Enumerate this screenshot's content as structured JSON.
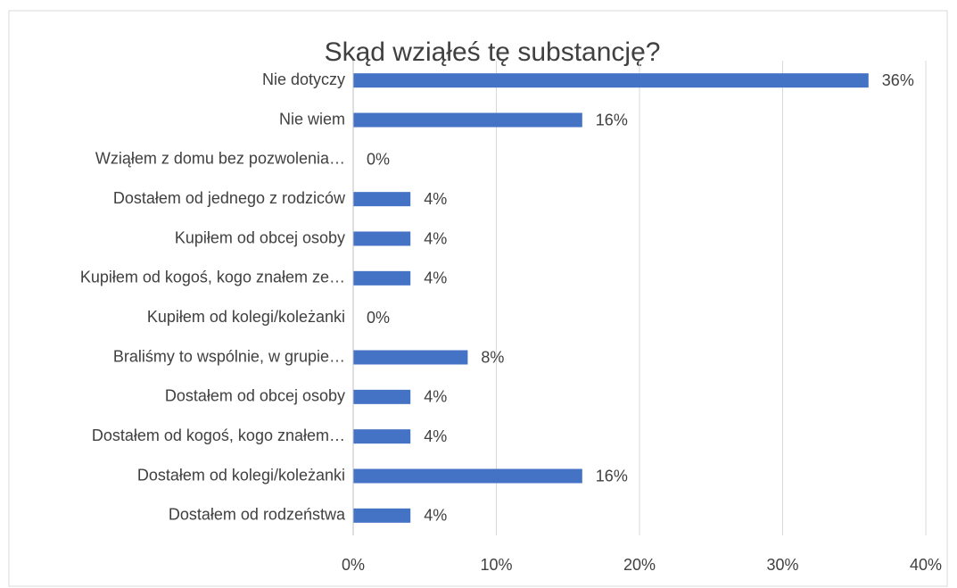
{
  "chart_data": {
    "type": "bar",
    "orientation": "horizontal",
    "title": "Skąd wziąłeś tę substancję?",
    "categories": [
      "Nie dotyczy",
      "Nie wiem",
      "Wziąłem z domu bez pozwolenia…",
      "Dostałem od jednego z rodziców",
      "Kupiłem od obcej osoby",
      "Kupiłem od kogoś, kogo znałem ze…",
      "Kupiłem od kolegi/koleżanki",
      "Braliśmy to wspólnie, w grupie…",
      "Dostałem od obcej osoby",
      "Dostałem od kogoś, kogo znałem…",
      "Dostałem od kolegi/koleżanki",
      "Dostałem od rodzeństwa"
    ],
    "values": [
      36,
      16,
      0,
      4,
      4,
      4,
      0,
      8,
      4,
      4,
      16,
      4
    ],
    "value_labels": [
      "36%",
      "16%",
      "0%",
      "4%",
      "4%",
      "4%",
      "0%",
      "8%",
      "4%",
      "4%",
      "16%",
      "4%"
    ],
    "color": "#4472c4",
    "xlim": [
      0,
      40
    ],
    "xticks": [
      {
        "value": 0,
        "label": "0%"
      },
      {
        "value": 10,
        "label": "10%"
      },
      {
        "value": 20,
        "label": "20%"
      },
      {
        "value": 30,
        "label": "30%"
      },
      {
        "value": 40,
        "label": "40%"
      }
    ],
    "grid": true
  }
}
